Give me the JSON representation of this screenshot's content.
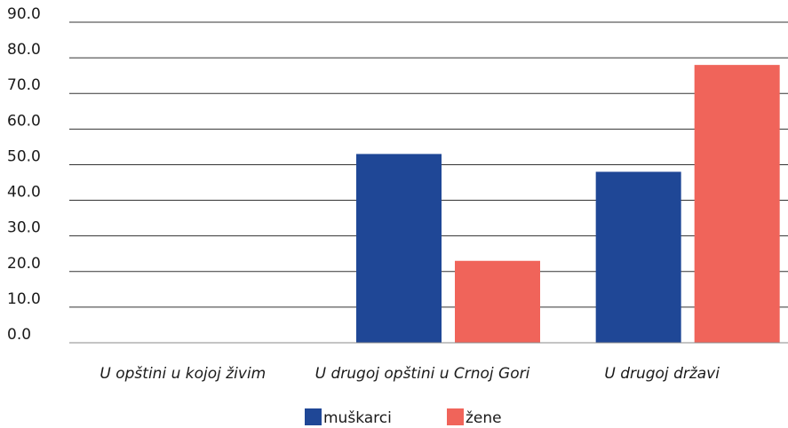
{
  "chart_data": {
    "type": "bar",
    "title": "",
    "xlabel": "",
    "ylabel": "",
    "categories": [
      "U opštini u kojoj živim",
      "U drugoj opštini u Crnoj Gori",
      "U drugoj državi"
    ],
    "series": [
      {
        "name": "muškarci",
        "color": "#1f4796",
        "values": [
          0,
          53,
          48
        ]
      },
      {
        "name": "žene",
        "color": "#f0645a",
        "values": [
          0,
          23,
          78
        ]
      }
    ],
    "ylim": [
      0,
      90
    ],
    "yticks": [
      "0.0",
      "10.0",
      "20.0",
      "30.0",
      "40.0",
      "50.0",
      "60.0",
      "70.0",
      "80.0",
      "90.0"
    ],
    "grid": true,
    "legend": "bottom-center"
  }
}
